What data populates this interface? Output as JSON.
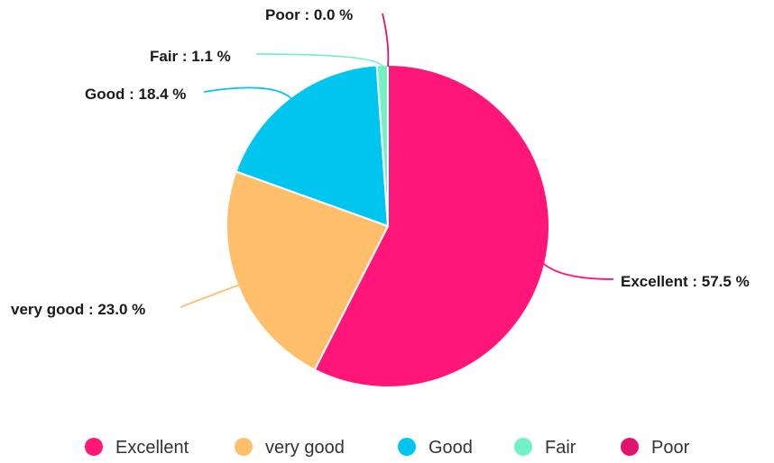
{
  "chart_data": {
    "type": "pie",
    "title": "",
    "legend_position": "bottom",
    "categories": [
      "Excellent",
      "very good",
      "Good",
      "Fair",
      "Poor"
    ],
    "values": [
      57.5,
      23.0,
      18.4,
      1.1,
      0.0
    ],
    "colors": [
      "#FF1678",
      "#FFBE69",
      "#00C5EE",
      "#73F0C4",
      "#E0146C"
    ],
    "data_labels": [
      "Excellent : 57.5 %",
      "very good : 23.0 %",
      "Good : 18.4 %",
      "Fair : 1.1 %",
      "Poor : 0.0 %"
    ],
    "legend": [
      "Excellent",
      "very good",
      "Good",
      "Fair",
      "Poor"
    ]
  }
}
